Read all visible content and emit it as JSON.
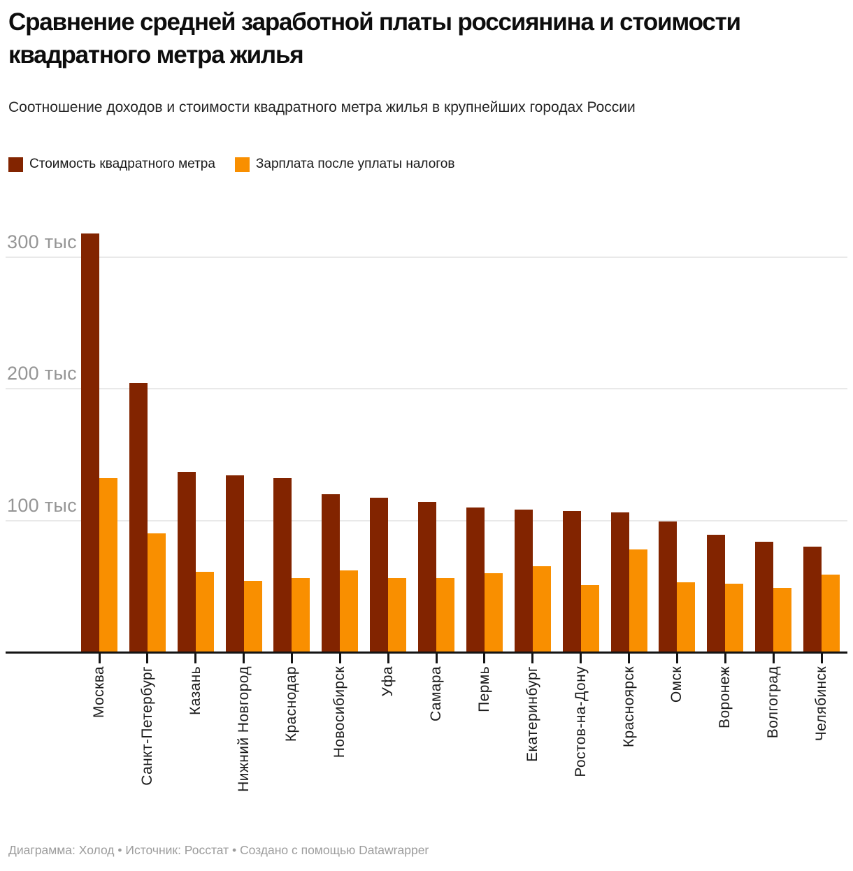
{
  "header": {
    "title": "Сравнение средней заработной платы россиянина и стоимости квадратного метра жилья",
    "subtitle": "Соотношение доходов и стоимости квадратного метра жилья в крупнейших городах России"
  },
  "legend": [
    {
      "label": "Стоимость квадратного метра",
      "color": "#822400"
    },
    {
      "label": "Зарплата после уплаты налогов",
      "color": "#F98F00"
    }
  ],
  "chart_data": {
    "type": "bar",
    "title": "Сравнение средней заработной платы россиянина и стоимости квадратного метра жилья",
    "subtitle": "Соотношение доходов и стоимости квадратного метра жилья в крупнейших городах России",
    "unit": "тыс",
    "categories": [
      "Москва",
      "Санкт-Петербург",
      "Казань",
      "Нижний Новгород",
      "Краснодар",
      "Новосибирск",
      "Уфа",
      "Самара",
      "Пермь",
      "Екатеринбург",
      "Ростов-на-Дону",
      "Красноярск",
      "Омск",
      "Воронеж",
      "Волгоград",
      "Челябинск"
    ],
    "series": [
      {
        "name": "Стоимость квадратного метра",
        "color": "#822400",
        "values": [
          318,
          204,
          137,
          134,
          132,
          120,
          117,
          114,
          110,
          108,
          107,
          106,
          99,
          89,
          84,
          80
        ]
      },
      {
        "name": "Зарплата после уплаты налогов",
        "color": "#F98F00",
        "values": [
          132,
          90,
          61,
          54,
          56,
          62,
          56,
          56,
          60,
          65,
          51,
          78,
          53,
          52,
          49,
          59
        ]
      }
    ],
    "y_ticks": [
      {
        "value": 100,
        "label": "100 тыс"
      },
      {
        "value": 200,
        "label": "200 тыс"
      },
      {
        "value": 300,
        "label": "300 тыс"
      }
    ],
    "ylim": [
      0,
      330
    ],
    "grid": true,
    "legend_position": "top"
  },
  "footer": {
    "text": "Диаграмма: Холод • Источник: Росстат • Создано с помощью Datawrapper"
  }
}
